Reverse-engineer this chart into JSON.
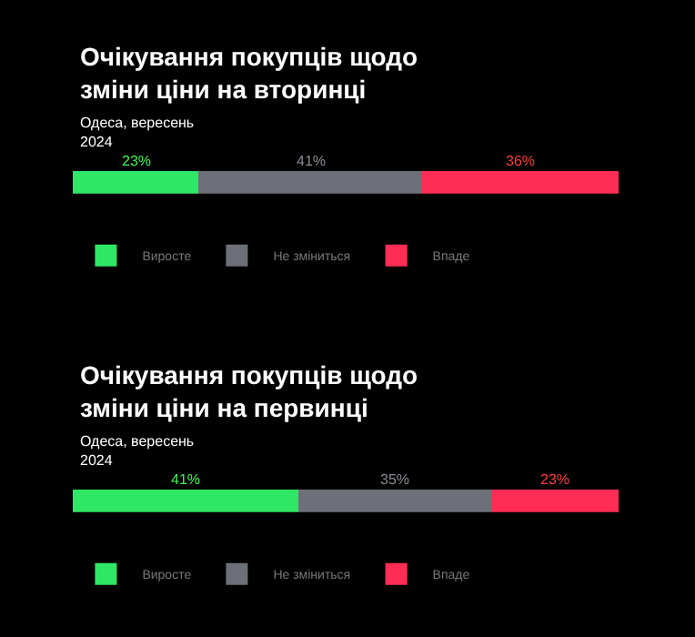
{
  "chart_data": [
    {
      "type": "bar",
      "orientation": "horizontal",
      "stacked": true,
      "title": "Очікування покупців щодо\nзміни ціни на вторинці",
      "subtitle": "Одеса, вересень\n2024",
      "categories": [
        null
      ],
      "legend": "bottom left",
      "grid": false,
      "tick_labels": false,
      "series": [
        {
          "name": "Виросте",
          "color": "#2ee865",
          "values": [
            23
          ],
          "value_labels": [
            "23%"
          ]
        },
        {
          "name": "Не зміниться",
          "color": "#6e7079",
          "values": [
            41
          ],
          "value_labels": [
            "41%"
          ]
        },
        {
          "name": "Впаде",
          "color": "#ff2d55",
          "values": [
            36
          ],
          "value_labels": [
            "36%"
          ]
        }
      ]
    },
    {
      "type": "bar",
      "orientation": "horizontal",
      "stacked": true,
      "title": "Очікування покупців щодо\nзміни ціни на первинці",
      "subtitle": "Одеса, вересень\n2024",
      "categories": [
        null
      ],
      "legend": "bottom left",
      "grid": false,
      "tick_labels": false,
      "series": [
        {
          "name": "Виросте",
          "color": "#2ee865",
          "values": [
            41
          ],
          "value_labels": [
            "41%"
          ]
        },
        {
          "name": "Не зміниться",
          "color": "#6e7079",
          "values": [
            35
          ],
          "value_labels": [
            "35%"
          ]
        },
        {
          "name": "Впаде",
          "color": "#ff2d55",
          "values": [
            23
          ],
          "value_labels": [
            "23%"
          ]
        }
      ]
    }
  ]
}
